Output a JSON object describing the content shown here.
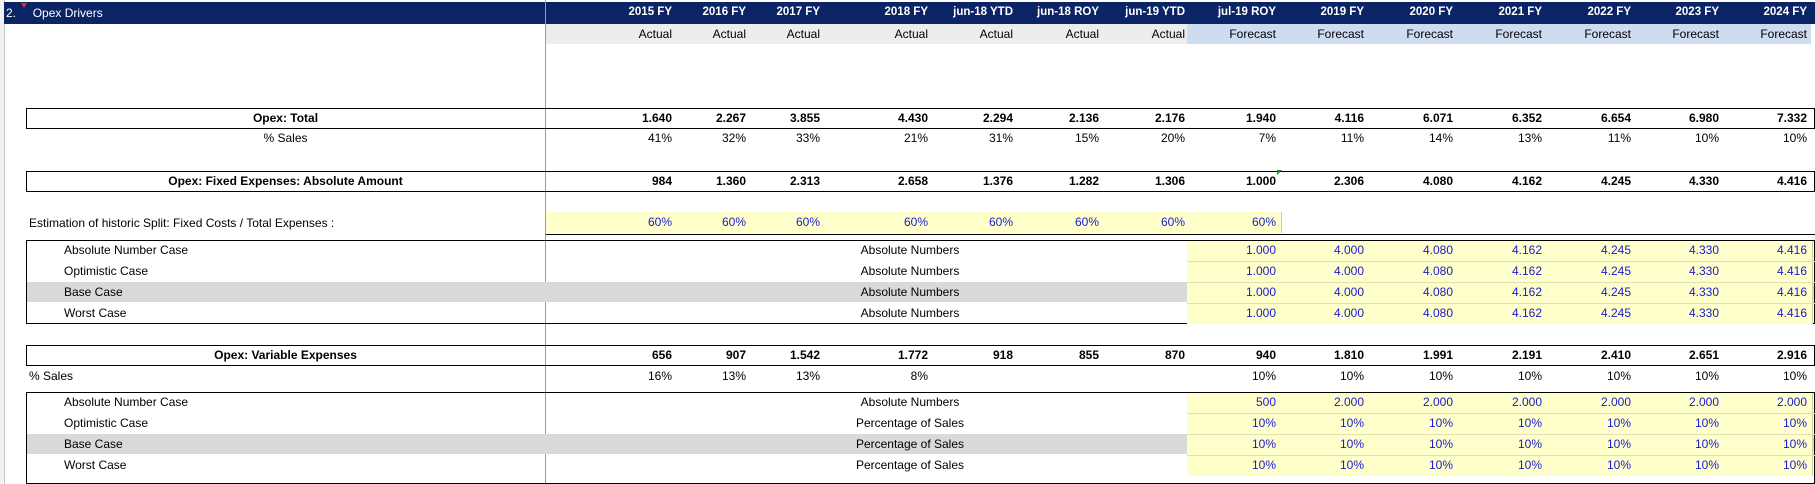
{
  "sheet": {
    "section_number": "2.",
    "section_title": "Opex Drivers",
    "columns": [
      "2015 FY",
      "2016 FY",
      "2017 FY",
      "2018 FY",
      "jun-18 YTD",
      "jun-18 ROY",
      "jun-19 YTD",
      "jul-19 ROY",
      "2019 FY",
      "2020 FY",
      "2021 FY",
      "2022 FY",
      "2023 FY",
      "2024 FY"
    ],
    "subtypes": [
      "Actual",
      "Actual",
      "Actual",
      "Actual",
      "Actual",
      "Actual",
      "Actual",
      "Forecast",
      "Forecast",
      "Forecast",
      "Forecast",
      "Forecast",
      "Forecast",
      "Forecast"
    ]
  },
  "total": {
    "label": "Opex: Total",
    "values": [
      "1.640",
      "2.267",
      "3.855",
      "4.430",
      "2.294",
      "2.136",
      "2.176",
      "1.940",
      "4.116",
      "6.071",
      "6.352",
      "6.654",
      "6.980",
      "7.332"
    ],
    "pct_label": "% Sales",
    "pct": [
      "41%",
      "32%",
      "33%",
      "21%",
      "31%",
      "15%",
      "20%",
      "7%",
      "11%",
      "14%",
      "13%",
      "11%",
      "10%",
      "10%"
    ]
  },
  "fixed": {
    "label": "Opex: Fixed Expenses: Absolute Amount",
    "values": [
      "984",
      "1.360",
      "2.313",
      "2.658",
      "1.376",
      "1.282",
      "1.306",
      "1.000",
      "2.306",
      "4.080",
      "4.162",
      "4.245",
      "4.330",
      "4.416"
    ],
    "estimation_label": "Estimation of historic Split: Fixed Costs / Total Expenses :",
    "estimation": [
      "60%",
      "60%",
      "60%",
      "60%",
      "60%",
      "60%",
      "60%",
      "60%"
    ],
    "cases": [
      {
        "name": "Absolute Number Case",
        "mode": "Absolute Numbers",
        "values": [
          "1.000",
          "4.000",
          "4.080",
          "4.162",
          "4.245",
          "4.330",
          "4.416"
        ]
      },
      {
        "name": "Optimistic Case",
        "mode": "Absolute Numbers",
        "values": [
          "1.000",
          "4.000",
          "4.080",
          "4.162",
          "4.245",
          "4.330",
          "4.416"
        ]
      },
      {
        "name": "Base Case",
        "mode": "Absolute Numbers",
        "values": [
          "1.000",
          "4.000",
          "4.080",
          "4.162",
          "4.245",
          "4.330",
          "4.416"
        ]
      },
      {
        "name": "Worst Case",
        "mode": "Absolute Numbers",
        "values": [
          "1.000",
          "4.000",
          "4.080",
          "4.162",
          "4.245",
          "4.330",
          "4.416"
        ]
      }
    ]
  },
  "variable": {
    "label": "Opex: Variable Expenses",
    "values": [
      "656",
      "907",
      "1.542",
      "1.772",
      "918",
      "855",
      "870",
      "940",
      "1.810",
      "1.991",
      "2.191",
      "2.410",
      "2.651",
      "2.916"
    ],
    "pct_label": "% Sales",
    "pct": [
      "16%",
      "13%",
      "13%",
      "8%",
      "",
      "",
      "",
      "10%",
      "10%",
      "10%",
      "10%",
      "10%",
      "10%",
      "10%"
    ],
    "cases": [
      {
        "name": "Absolute Number Case",
        "mode": "Absolute Numbers",
        "values": [
          "500",
          "2.000",
          "2.000",
          "2.000",
          "2.000",
          "2.000",
          "2.000"
        ]
      },
      {
        "name": "Optimistic Case",
        "mode": "Percentage of Sales",
        "values": [
          "10%",
          "10%",
          "10%",
          "10%",
          "10%",
          "10%",
          "10%"
        ]
      },
      {
        "name": "Base Case",
        "mode": "Percentage of Sales",
        "values": [
          "10%",
          "10%",
          "10%",
          "10%",
          "10%",
          "10%",
          "10%"
        ]
      },
      {
        "name": "Worst Case",
        "mode": "Percentage of Sales",
        "values": [
          "10%",
          "10%",
          "10%",
          "10%",
          "10%",
          "10%",
          "10%"
        ]
      }
    ]
  },
  "colors": {
    "header": "#0b2465",
    "input_fill": "#ffffcc",
    "input_text": "#1a1ad0",
    "forecast_fill": "#cddcf0",
    "base_case_fill": "#d9d9d9"
  }
}
